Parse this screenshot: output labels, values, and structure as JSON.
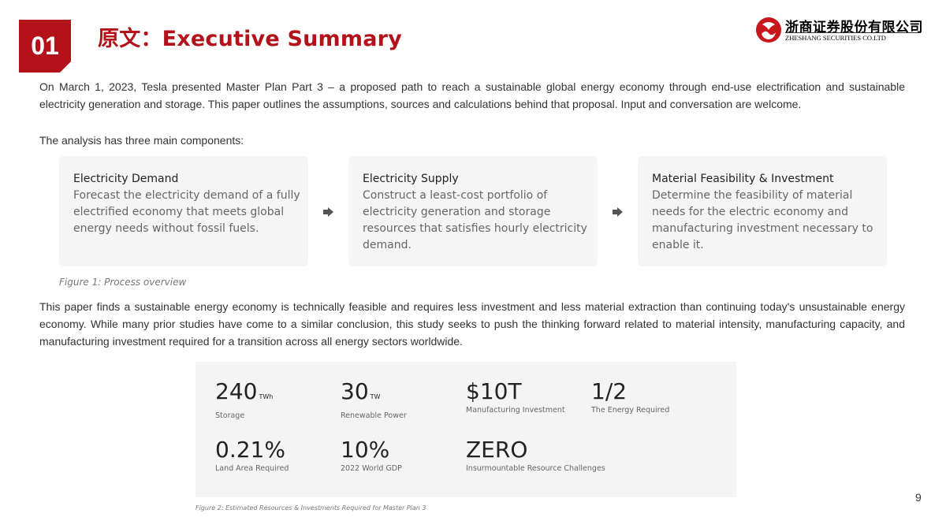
{
  "header": {
    "section_number": "01",
    "title": "原文：Executive Summary"
  },
  "logo": {
    "name_cn": "浙商证券股份有限公司",
    "name_en": "ZHESHANG SECURITIES CO.LTD",
    "mark_color": "#c8161d"
  },
  "body": {
    "intro": "On March 1, 2023, Tesla presented Master Plan Part 3 – a proposed path to reach a sustainable global energy economy through end-use electrification and sustainable electricity generation and storage. This paper outlines the assumptions, sources and calculations behind that proposal. Input and conversation are welcome.",
    "components_lead": "The analysis has three main components:",
    "findings": "This paper finds a sustainable energy economy is technically feasible and requires less investment and less material extraction than continuing today's unsustainable energy economy. While many prior studies have come to a similar conclusion, this study seeks to push the thinking forward related to material intensity, manufacturing capacity, and manufacturing investment required for a transition across all energy sectors worldwide."
  },
  "process": {
    "steps": [
      {
        "title": "Electricity Demand",
        "desc": "Forecast the electricity demand of a fully electrified economy that meets global energy needs without fossil fuels."
      },
      {
        "title": "Electricity Supply",
        "desc": "Construct a least-cost portfolio of electricity generation and storage resources that satisfies hourly electricity demand."
      },
      {
        "title": "Material Feasibility & Investment",
        "desc": "Determine the feasibility of material needs for the electric economy and manufacturing investment necessary to enable it."
      }
    ],
    "caption": "Figure 1: Process overview"
  },
  "stats": {
    "items": [
      {
        "value": "240",
        "unit": "TWh",
        "label": "Storage"
      },
      {
        "value": "30",
        "unit": "TW",
        "label": "Renewable Power"
      },
      {
        "value": "$10T",
        "unit": "",
        "label": "Manufacturing Investment"
      },
      {
        "value": "1/2",
        "unit": "",
        "label": "The Energy Required"
      },
      {
        "value": "0.21%",
        "unit": "",
        "label": "Land Area Required"
      },
      {
        "value": "10%",
        "unit": "",
        "label": "2022 World GDP"
      },
      {
        "value": "ZERO",
        "unit": "",
        "label": "Insurmountable Resource Challenges"
      }
    ],
    "caption": "Figure 2: Estimated Resources & Investments Required for Master Plan 3"
  },
  "page_number": "9",
  "colors": {
    "accent": "#b3121a",
    "card_bg": "#f5f5f5"
  }
}
